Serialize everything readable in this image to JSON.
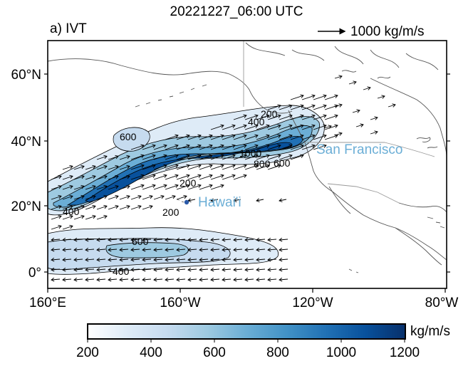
{
  "figure": {
    "title": "20221227_06:00 UTC",
    "panel_label": "a) IVT",
    "reference_vector_label": "1000 kg/m/s"
  },
  "map": {
    "lat_ticks": [
      "60°N",
      "40°N",
      "20°N",
      "0°"
    ],
    "lon_ticks": [
      "160°E",
      "160°W",
      "120°W",
      "80°W"
    ],
    "place_labels": {
      "san_francisco": "San Francisco",
      "hawaii": "Hawai'i"
    },
    "contour_labels": [
      "600",
      "400",
      "200",
      "200",
      "1000",
      "800",
      "600",
      "400",
      "200",
      "600",
      "400"
    ],
    "colors": {
      "place_label": "#6baed6",
      "hawaii_dot": "#2b5aa8",
      "land_outline": "#888888"
    }
  },
  "colorbar": {
    "unit": "kg/m/s",
    "tick_labels": [
      "200",
      "400",
      "600",
      "800",
      "1000",
      "1200"
    ],
    "colors": [
      "#ffffff",
      "#deebf7",
      "#c6dbef",
      "#9ecae1",
      "#6baed6",
      "#4292c6",
      "#2171b5",
      "#08519c",
      "#08306b"
    ]
  }
}
